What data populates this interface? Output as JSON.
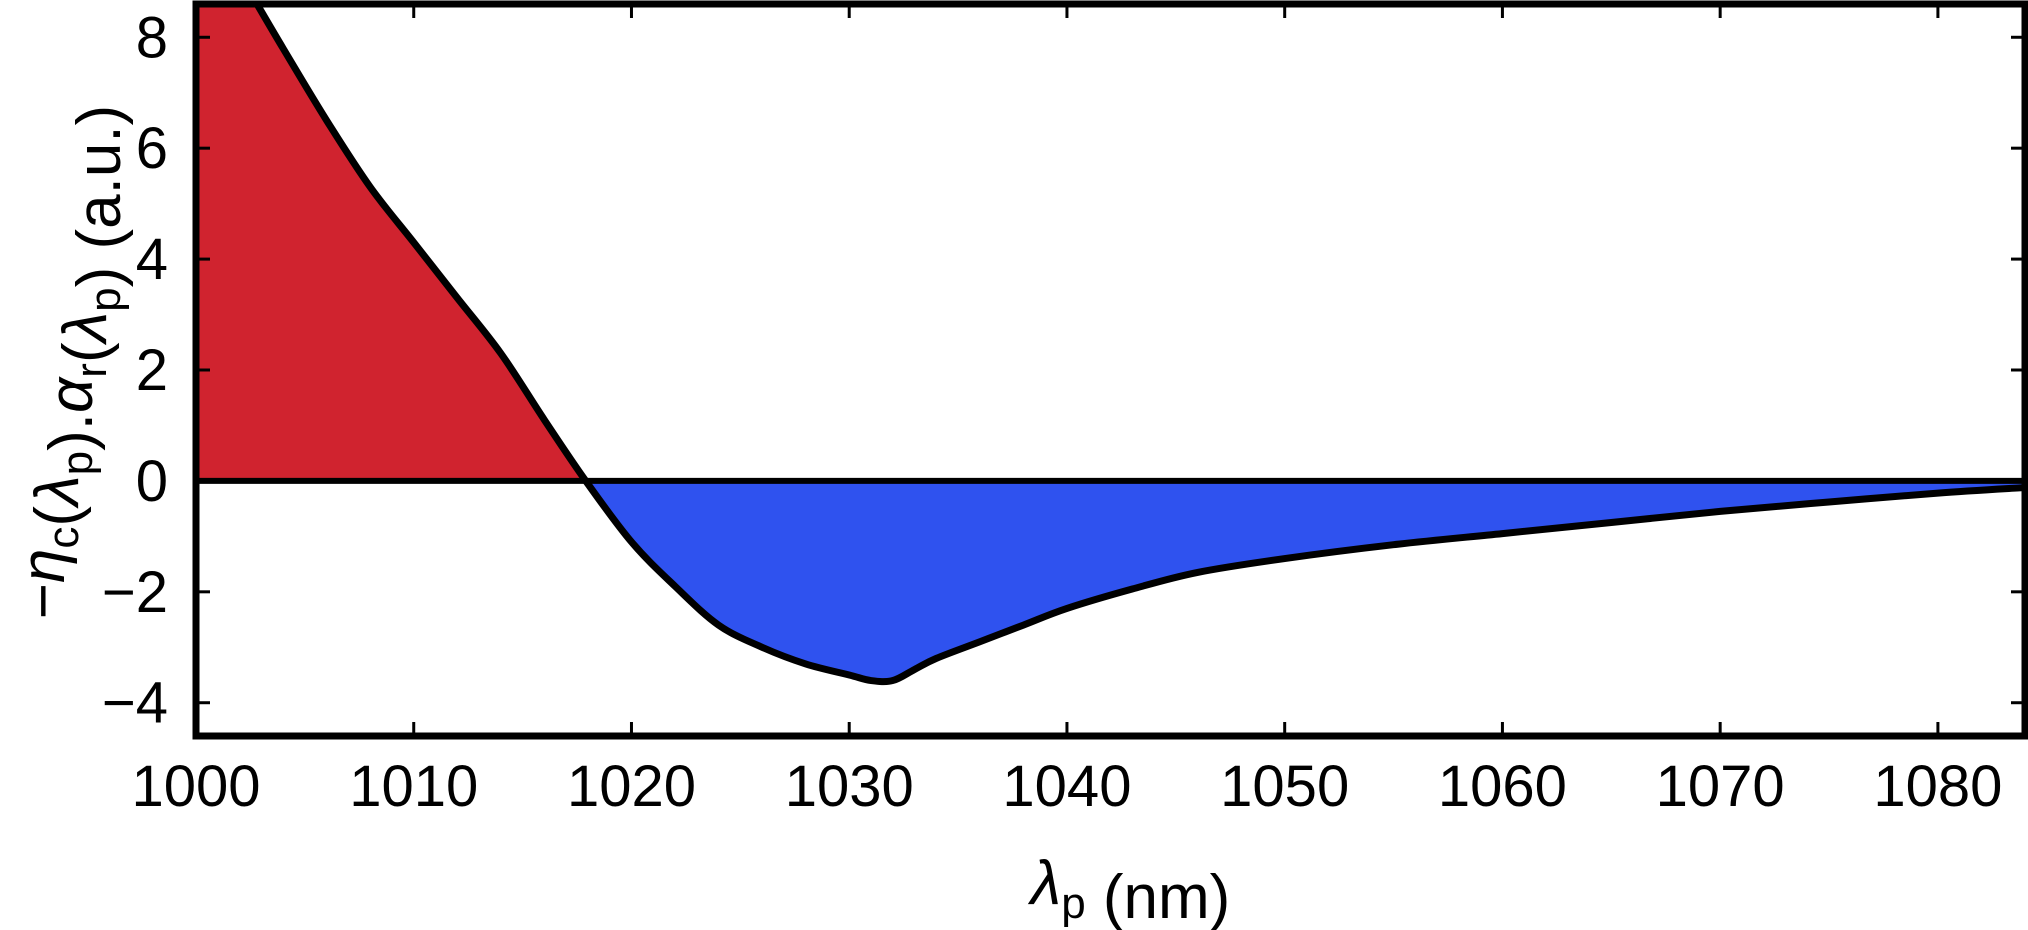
{
  "chart_data": {
    "type": "area",
    "title": "",
    "xlabel": "λp (nm)",
    "ylabel": "−ηc(λp).αr(λp) (a.u.)",
    "xlim": [
      1000,
      1084
    ],
    "ylim": [
      -4.6,
      8.6
    ],
    "x_ticks": [
      1000,
      1010,
      1020,
      1030,
      1040,
      1050,
      1060,
      1070,
      1080
    ],
    "y_ticks": [
      -4,
      -2,
      0,
      2,
      4,
      6,
      8
    ],
    "y_tick_labels": [
      "−4",
      "−2",
      "0",
      "2",
      "4",
      "6",
      "8"
    ],
    "grid": false,
    "zero_line": true,
    "fill_positive_color": "#d0232f",
    "fill_negative_color": "#2f52ef",
    "line_color": "#000000",
    "series": [
      {
        "x": [
          1002.8,
          1004,
          1006,
          1008,
          1010,
          1012,
          1014,
          1016,
          1017.9,
          1020,
          1022,
          1024,
          1026,
          1028,
          1030,
          1031,
          1032,
          1033,
          1034,
          1036,
          1038,
          1040,
          1043,
          1046,
          1050,
          1055,
          1060,
          1065,
          1070,
          1075,
          1080,
          1084
        ],
        "y": [
          8.6,
          7.8,
          6.5,
          5.3,
          4.3,
          3.3,
          2.3,
          1.1,
          0.0,
          -1.1,
          -1.9,
          -2.6,
          -3.0,
          -3.3,
          -3.5,
          -3.6,
          -3.6,
          -3.4,
          -3.2,
          -2.9,
          -2.6,
          -2.3,
          -1.95,
          -1.65,
          -1.4,
          -1.15,
          -0.95,
          -0.75,
          -0.55,
          -0.38,
          -0.22,
          -0.12
        ]
      }
    ]
  }
}
